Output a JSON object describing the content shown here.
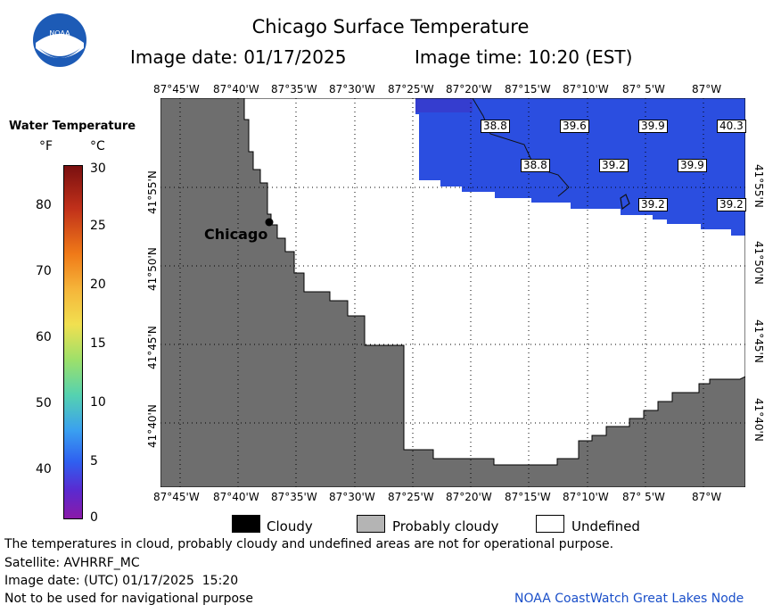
{
  "header": {
    "title": "Chicago Surface Temperature",
    "date_label": "Image date: 01/17/2025",
    "time_label": "Image time: 10:20 (EST)",
    "logo_text": "NOAA"
  },
  "scale": {
    "title": "Water Temperature",
    "unit_f": "°F",
    "unit_c": "°C",
    "fahrenheit_ticks": [
      "80",
      "70",
      "60",
      "50",
      "40"
    ],
    "celsius_ticks": [
      "30",
      "25",
      "20",
      "15",
      "10",
      "5",
      "0"
    ]
  },
  "map": {
    "lon_labels": [
      "87°45'W",
      "87°40'W",
      "87°35'W",
      "87°30'W",
      "87°25'W",
      "87°20'W",
      "87°15'W",
      "87°10'W",
      "87° 5'W",
      "87°W"
    ],
    "lat_labels": [
      "41°55'N",
      "41°50'N",
      "41°45'N",
      "41°40'N"
    ],
    "city": "Chicago",
    "temperatures": [
      "38.8",
      "39.6",
      "39.9",
      "40.3",
      "38.8",
      "39.2",
      "39.9",
      "39.2",
      "39.2"
    ],
    "colors": {
      "land": "#6e6e6e",
      "water": "#2b4ee0",
      "water_edge": "#3b36c8",
      "grid": "#000000"
    }
  },
  "key": {
    "cloudy": "Cloudy",
    "probably_cloudy": "Probably cloudy",
    "undefined": "Undefined",
    "colors": {
      "cloudy": "#000000",
      "probably_cloudy": "#b4b4b4",
      "undefined": "#ffffff"
    }
  },
  "footer": {
    "disclaimer": "The temperatures in cloud, probably cloudy and undefined areas are not for operational purpose.",
    "satellite": "Satellite: AVHRRF_MC",
    "utc_date": "Image date: (UTC) 01/17/2025  15:20",
    "navigation": "Not to be used for navigational purpose",
    "credit": "NOAA CoastWatch Great Lakes Node"
  }
}
